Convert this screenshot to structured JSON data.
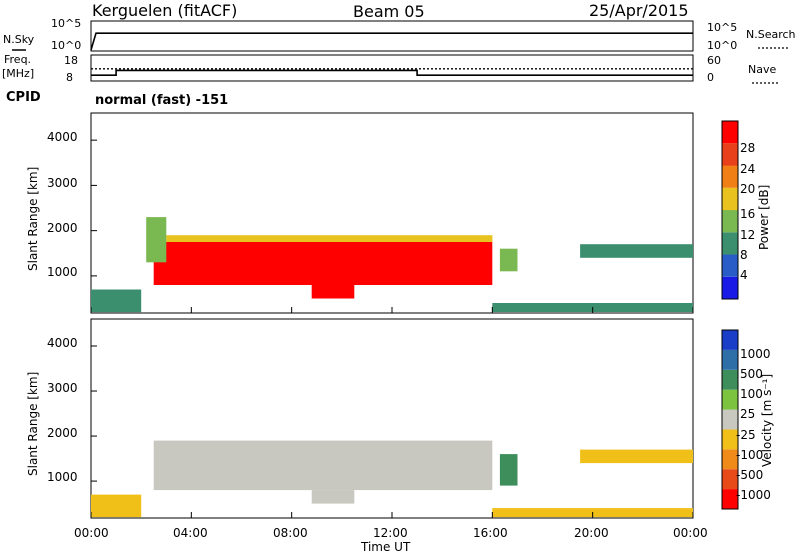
{
  "header": {
    "station": "Kerguelen (fitACF)",
    "beam": "Beam 05",
    "date": "25/Apr/2015"
  },
  "sky_panel": {
    "left_label": "N.Sky",
    "right_label": "N.Search",
    "left_ticks": [
      "10^5",
      "10^0"
    ],
    "right_ticks": [
      "10^5",
      "10^0"
    ]
  },
  "freq_panel": {
    "left_label_top": "Freq.",
    "left_label_unit": "[MHz]",
    "right_label": "Nave",
    "left_ticks": [
      "18",
      "8"
    ],
    "right_ticks": [
      "60",
      "0"
    ]
  },
  "cpid": {
    "label": "CPID",
    "text": "normal (fast) -151"
  },
  "x_axis": {
    "ticks": [
      "00:00",
      "04:00",
      "08:00",
      "12:00",
      "16:00",
      "20:00",
      "00:00"
    ],
    "label": "Time UT"
  },
  "y_axis": {
    "ticks": [
      "1000",
      "2000",
      "3000",
      "4000"
    ],
    "label": "Slant Range [km]"
  },
  "power_colorbar": {
    "label": "Power [dB]",
    "ticks": [
      "4",
      "8",
      "12",
      "16",
      "20",
      "24",
      "28"
    ],
    "colors": [
      "#1a1ae6",
      "#2a5cc8",
      "#3b8f6e",
      "#7ab852",
      "#e8c21e",
      "#f07f15",
      "#e8401a",
      "#ff0000"
    ]
  },
  "velocity_colorbar": {
    "label": "Velocity [m s⁻¹]",
    "ticks": [
      "1000",
      "500",
      "100",
      "25",
      "-25",
      "-100",
      "-500",
      "-1000"
    ],
    "colors": [
      "#1a3ec8",
      "#2e6fa8",
      "#3e8e5c",
      "#7cc440",
      "#c8c8c0",
      "#f0c018",
      "#f08a18",
      "#e84a18",
      "#ff0000"
    ]
  },
  "chart_data": [
    {
      "type": "line",
      "title": "Kerguelen (fitACF) Beam 05 25/Apr/2015",
      "series": [
        {
          "name": "N.Sky",
          "x_hours": [
            0,
            0.2,
            24
          ],
          "values": [
            0,
            1000,
            1000
          ]
        }
      ]
    },
    {
      "type": "line",
      "series": [
        {
          "name": "Freq.",
          "x_hours": [
            0,
            1,
            1,
            13,
            13,
            24
          ],
          "values": [
            10,
            10,
            12,
            12,
            10,
            10
          ]
        },
        {
          "name": "Nave",
          "x_hours": [
            0,
            24
          ],
          "values": [
            28,
            28
          ]
        }
      ]
    },
    {
      "type": "heatmap",
      "title": "Power [dB]",
      "xlabel": "Time UT",
      "ylabel": "Slant Range [km]",
      "xlim_hours": [
        0,
        24
      ],
      "ylim_km": [
        180,
        4600
      ],
      "regions": [
        {
          "t_hours": [
            2.5,
            16.0
          ],
          "range_km": [
            800,
            1750
          ],
          "value_db": 28
        },
        {
          "t_hours": [
            8.8,
            10.5
          ],
          "range_km": [
            500,
            800
          ],
          "value_db": 28
        },
        {
          "t_hours": [
            3.0,
            16.0
          ],
          "range_km": [
            1750,
            1900
          ],
          "value_db": 16
        },
        {
          "t_hours": [
            2.2,
            3.0
          ],
          "range_km": [
            1300,
            2300
          ],
          "value_db": 12
        },
        {
          "t_hours": [
            16.3,
            17.0
          ],
          "range_km": [
            1100,
            1600
          ],
          "value_db": 12
        },
        {
          "t_hours": [
            19.5,
            24.0
          ],
          "range_km": [
            1400,
            1700
          ],
          "value_db": 8
        },
        {
          "t_hours": [
            0,
            2.0
          ],
          "range_km": [
            200,
            700
          ],
          "value_db": 8
        },
        {
          "t_hours": [
            16.0,
            24.0
          ],
          "range_km": [
            200,
            400
          ],
          "value_db": 8
        }
      ]
    },
    {
      "type": "heatmap",
      "title": "Velocity [m s⁻¹]",
      "xlabel": "Time UT",
      "ylabel": "Slant Range [km]",
      "xlim_hours": [
        0,
        24
      ],
      "ylim_km": [
        180,
        4600
      ],
      "regions": [
        {
          "t_hours": [
            2.5,
            16.0
          ],
          "range_km": [
            800,
            1900
          ],
          "value_ms": 0
        },
        {
          "t_hours": [
            8.8,
            10.5
          ],
          "range_km": [
            500,
            800
          ],
          "value_ms": 0
        },
        {
          "t_hours": [
            16.3,
            17.0
          ],
          "range_km": [
            900,
            1600
          ],
          "value_ms": 100
        },
        {
          "t_hours": [
            19.5,
            24.0
          ],
          "range_km": [
            1400,
            1700
          ],
          "value_ms": -100
        },
        {
          "t_hours": [
            0,
            2.0
          ],
          "range_km": [
            200,
            700
          ],
          "value_ms": -100
        },
        {
          "t_hours": [
            16.0,
            24.0
          ],
          "range_km": [
            200,
            400
          ],
          "value_ms": -100
        }
      ]
    }
  ]
}
